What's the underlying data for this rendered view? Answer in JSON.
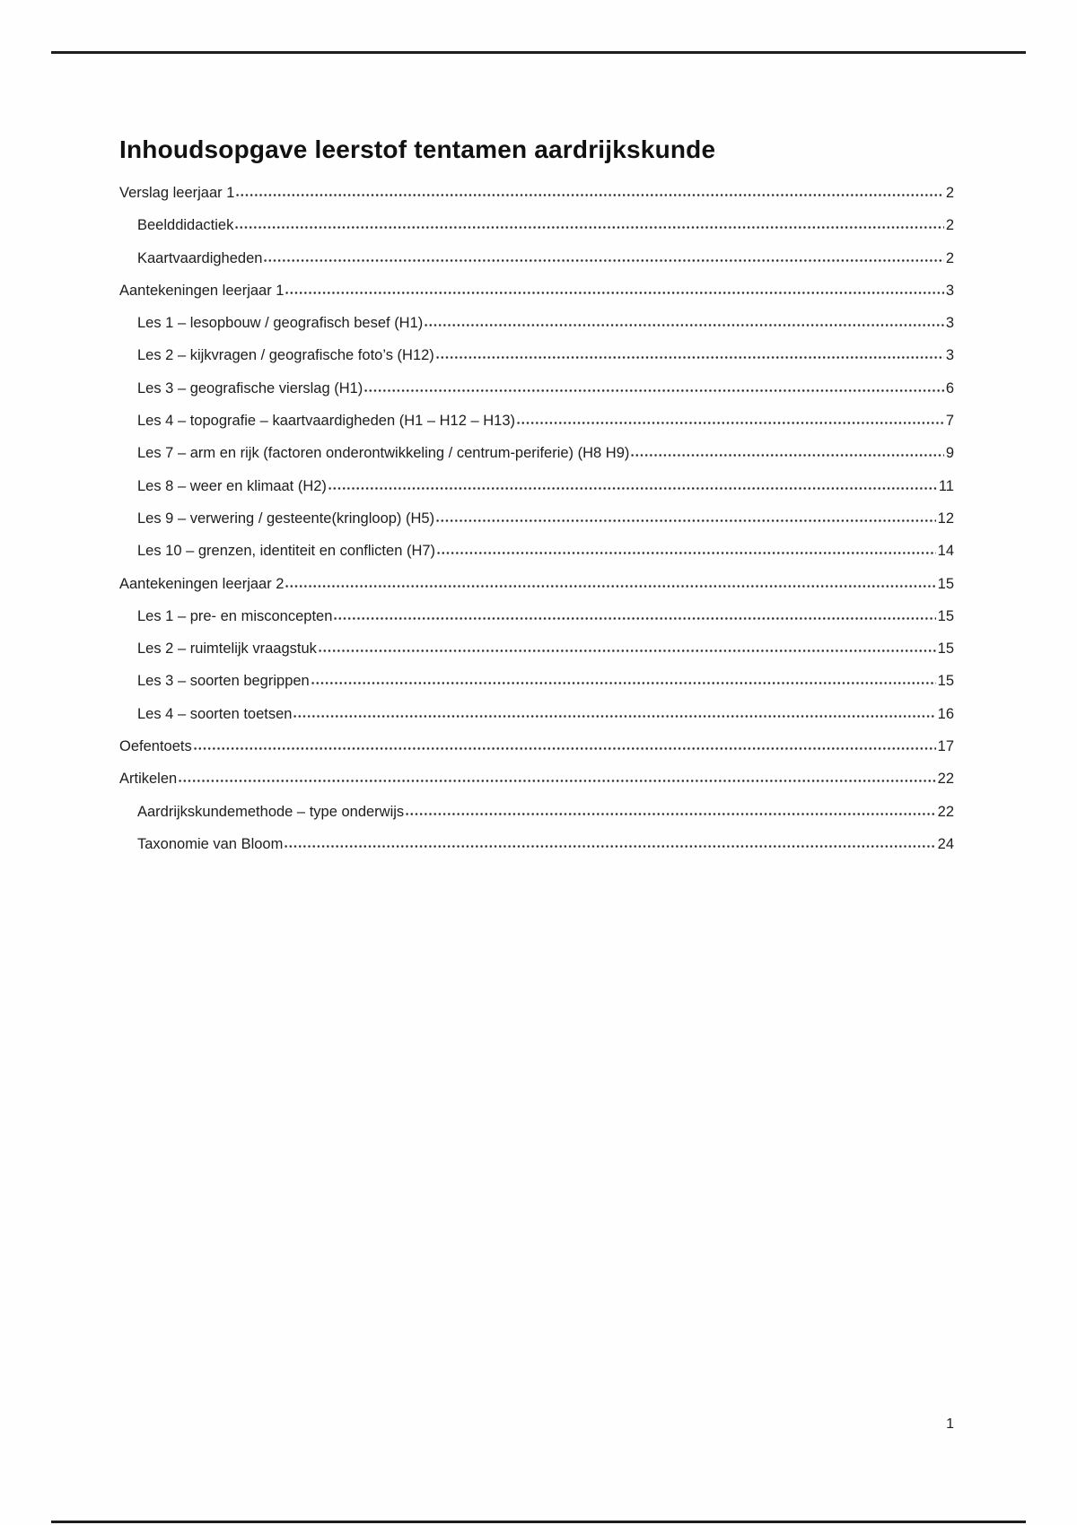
{
  "toc": {
    "title": "Inhoudsopgave leerstof tentamen aardrijkskunde",
    "entries": [
      {
        "label": "Verslag leerjaar 1",
        "page": "2",
        "level": 1
      },
      {
        "label": "Beelddidactiek",
        "page": "2",
        "level": 2
      },
      {
        "label": "Kaartvaardigheden",
        "page": "2",
        "level": 2
      },
      {
        "label": "Aantekeningen leerjaar 1",
        "page": "3",
        "level": 1
      },
      {
        "label": "Les 1 – lesopbouw / geografisch besef (H1)",
        "page": "3",
        "level": 2
      },
      {
        "label": "Les 2 – kijkvragen / geografische foto’s (H12)",
        "page": "3",
        "level": 2
      },
      {
        "label": "Les 3 – geografische vierslag (H1)",
        "page": "6",
        "level": 2
      },
      {
        "label": "Les 4 – topografie – kaartvaardigheden (H1 – H12 – H13)",
        "page": "7",
        "level": 2
      },
      {
        "label": "Les 7 – arm en rijk (factoren onderontwikkeling / centrum-periferie) (H8 H9)",
        "page": "9",
        "level": 2
      },
      {
        "label": "Les 8 – weer en klimaat (H2)",
        "page": "11",
        "level": 2
      },
      {
        "label": "Les 9 – verwering / gesteente(kringloop) (H5)",
        "page": "12",
        "level": 2
      },
      {
        "label": "Les 10 – grenzen, identiteit en conflicten (H7)",
        "page": "14",
        "level": 2
      },
      {
        "label": "Aantekeningen leerjaar 2",
        "page": "15",
        "level": 1
      },
      {
        "label": "Les 1 – pre- en misconcepten",
        "page": "15",
        "level": 2
      },
      {
        "label": "Les 2 – ruimtelijk vraagstuk",
        "page": "15",
        "level": 2
      },
      {
        "label": "Les 3 – soorten begrippen",
        "page": "15",
        "level": 2
      },
      {
        "label": "Les 4 – soorten toetsen",
        "page": "16",
        "level": 2
      },
      {
        "label": "Oefentoets",
        "page": "17",
        "level": 1
      },
      {
        "label": "Artikelen",
        "page": "22",
        "level": 1
      },
      {
        "label": "Aardrijkskundemethode – type onderwijs",
        "page": "22",
        "level": 2
      },
      {
        "label": "Taxonomie van Bloom",
        "page": "24",
        "level": 2
      }
    ]
  },
  "footer": {
    "page_number": "1"
  }
}
